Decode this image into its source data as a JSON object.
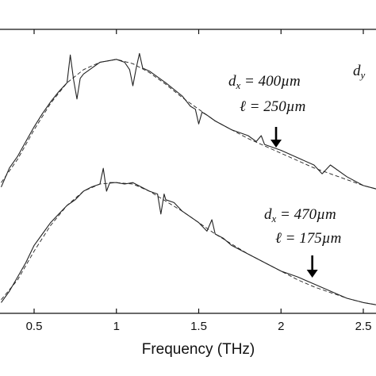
{
  "chart_data": {
    "type": "line",
    "title": "",
    "xlabel": "Frequency (THz)",
    "ylabel": "",
    "xlim": [
      0.3,
      2.6
    ],
    "x_ticks": [
      0.5,
      1,
      1.5,
      2,
      2.5
    ],
    "x_tick_labels": [
      "0.5",
      "1",
      "1.5",
      "2",
      "2.5"
    ],
    "grid": false,
    "series": [
      {
        "style": "solid",
        "group": "upper",
        "x": [
          0.3,
          0.35,
          0.4,
          0.45,
          0.5,
          0.55,
          0.6,
          0.65,
          0.7,
          0.72,
          0.74,
          0.76,
          0.78,
          0.8,
          0.85,
          0.9,
          0.95,
          1.0,
          1.05,
          1.08,
          1.1,
          1.12,
          1.14,
          1.16,
          1.2,
          1.3,
          1.4,
          1.45,
          1.48,
          1.5,
          1.52,
          1.55,
          1.6,
          1.7,
          1.8,
          1.85,
          1.88,
          1.9,
          2.0,
          2.1,
          2.2,
          2.25,
          2.3,
          2.4,
          2.5,
          2.6
        ],
        "y": [
          0.05,
          0.18,
          0.26,
          0.36,
          0.46,
          0.55,
          0.63,
          0.7,
          0.76,
          0.95,
          0.78,
          0.65,
          0.79,
          0.82,
          0.86,
          0.9,
          0.91,
          0.92,
          0.9,
          0.85,
          0.74,
          0.86,
          0.96,
          0.86,
          0.84,
          0.76,
          0.67,
          0.6,
          0.58,
          0.48,
          0.56,
          0.54,
          0.5,
          0.44,
          0.4,
          0.36,
          0.4,
          0.34,
          0.3,
          0.25,
          0.2,
          0.14,
          0.2,
          0.12,
          0.06,
          0.03
        ]
      },
      {
        "style": "dashed",
        "group": "upper",
        "x": [
          0.3,
          0.4,
          0.5,
          0.6,
          0.7,
          0.8,
          0.9,
          1.0,
          1.1,
          1.2,
          1.3,
          1.4,
          1.5,
          1.6,
          1.7,
          1.8,
          1.9,
          2.0,
          2.1,
          2.2,
          2.3,
          2.4,
          2.5,
          2.6
        ],
        "y": [
          0.08,
          0.24,
          0.44,
          0.62,
          0.76,
          0.85,
          0.9,
          0.92,
          0.89,
          0.83,
          0.75,
          0.66,
          0.58,
          0.5,
          0.44,
          0.38,
          0.33,
          0.28,
          0.23,
          0.18,
          0.14,
          0.1,
          0.06,
          0.03
        ]
      },
      {
        "style": "solid",
        "group": "lower",
        "x": [
          0.3,
          0.35,
          0.4,
          0.45,
          0.5,
          0.55,
          0.6,
          0.65,
          0.7,
          0.75,
          0.8,
          0.85,
          0.9,
          0.92,
          0.94,
          0.96,
          1.0,
          1.05,
          1.1,
          1.15,
          1.2,
          1.25,
          1.27,
          1.29,
          1.3,
          1.35,
          1.4,
          1.5,
          1.55,
          1.58,
          1.6,
          1.65,
          1.7,
          1.8,
          1.9,
          2.0,
          2.1,
          2.2,
          2.3,
          2.4,
          2.5,
          2.6
        ],
        "y": [
          0.02,
          0.1,
          0.2,
          0.3,
          0.42,
          0.5,
          0.58,
          0.64,
          0.7,
          0.74,
          0.8,
          0.83,
          0.85,
          0.96,
          0.8,
          0.86,
          0.86,
          0.85,
          0.86,
          0.83,
          0.8,
          0.78,
          0.64,
          0.78,
          0.74,
          0.72,
          0.66,
          0.58,
          0.52,
          0.6,
          0.5,
          0.47,
          0.42,
          0.36,
          0.3,
          0.24,
          0.2,
          0.15,
          0.1,
          0.05,
          0.02,
          0.0
        ]
      },
      {
        "style": "dashed",
        "group": "lower",
        "x": [
          0.3,
          0.4,
          0.5,
          0.6,
          0.7,
          0.8,
          0.9,
          1.0,
          1.1,
          1.2,
          1.3,
          1.4,
          1.5,
          1.6,
          1.7,
          1.8,
          1.9,
          2.0,
          2.1,
          2.2,
          2.3,
          2.4,
          2.5,
          2.6
        ],
        "y": [
          0.04,
          0.18,
          0.38,
          0.56,
          0.7,
          0.8,
          0.85,
          0.86,
          0.85,
          0.8,
          0.73,
          0.66,
          0.58,
          0.5,
          0.43,
          0.36,
          0.3,
          0.24,
          0.18,
          0.13,
          0.09,
          0.05,
          0.02,
          0.0
        ]
      }
    ],
    "annotations": [
      {
        "group": "upper",
        "text_var": "d",
        "text_sub": "x",
        "text_rest": " = 400µm",
        "line2": "ℓ = 250µm",
        "arrow_x": 1.97
      },
      {
        "group": "lower",
        "text_var": "d",
        "text_sub": "x",
        "text_rest": " = 470µm",
        "line2": "ℓ = 175µm",
        "arrow_x": 2.19
      }
    ],
    "corner_label": {
      "text_var": "d",
      "text_sub": "y"
    }
  }
}
